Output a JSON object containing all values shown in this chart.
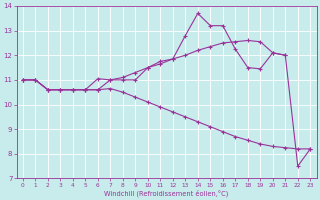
{
  "xlabel": "Windchill (Refroidissement éolien,°C)",
  "xlim": [
    -0.5,
    23.5
  ],
  "ylim": [
    7,
    14
  ],
  "xticks": [
    0,
    1,
    2,
    3,
    4,
    5,
    6,
    7,
    8,
    9,
    10,
    11,
    12,
    13,
    14,
    15,
    16,
    17,
    18,
    19,
    20,
    21,
    22,
    23
  ],
  "yticks": [
    7,
    8,
    9,
    10,
    11,
    12,
    13,
    14
  ],
  "bg_color": "#c8ecec",
  "line_color": "#993399",
  "grid_color": "#ffffff",
  "line1_x": [
    0,
    1,
    2,
    3,
    4,
    5,
    6,
    7,
    8,
    9,
    10,
    11,
    12,
    13,
    14,
    15,
    16,
    17,
    18,
    19,
    20,
    21,
    22,
    23
  ],
  "line1_y": [
    11.0,
    11.0,
    10.6,
    10.6,
    10.6,
    10.6,
    11.05,
    11.0,
    11.0,
    11.0,
    11.5,
    11.75,
    11.85,
    12.8,
    13.7,
    13.2,
    13.2,
    12.25,
    11.5,
    11.45,
    12.1,
    12.0,
    7.5,
    8.2
  ],
  "line2_x": [
    0,
    1,
    2,
    3,
    4,
    5,
    6,
    7,
    8,
    9,
    10,
    11,
    12,
    13,
    14,
    15,
    16,
    17,
    18,
    19,
    20,
    21
  ],
  "line2_y": [
    11.0,
    11.0,
    10.6,
    10.6,
    10.6,
    10.6,
    10.6,
    11.0,
    11.1,
    11.3,
    11.5,
    11.65,
    11.85,
    12.0,
    12.2,
    12.35,
    12.5,
    12.55,
    12.6,
    12.55,
    12.1,
    12.0
  ],
  "line3_x": [
    0,
    1,
    2,
    3,
    4,
    5,
    6,
    7,
    8,
    9,
    10,
    11,
    12,
    13,
    14,
    15,
    16,
    17,
    18,
    19,
    20,
    21,
    22,
    23
  ],
  "line3_y": [
    11.0,
    11.0,
    10.6,
    10.6,
    10.6,
    10.6,
    10.6,
    10.65,
    10.5,
    10.3,
    10.1,
    9.9,
    9.7,
    9.5,
    9.3,
    9.1,
    8.9,
    8.7,
    8.55,
    8.4,
    8.3,
    8.25,
    8.2,
    8.2
  ]
}
